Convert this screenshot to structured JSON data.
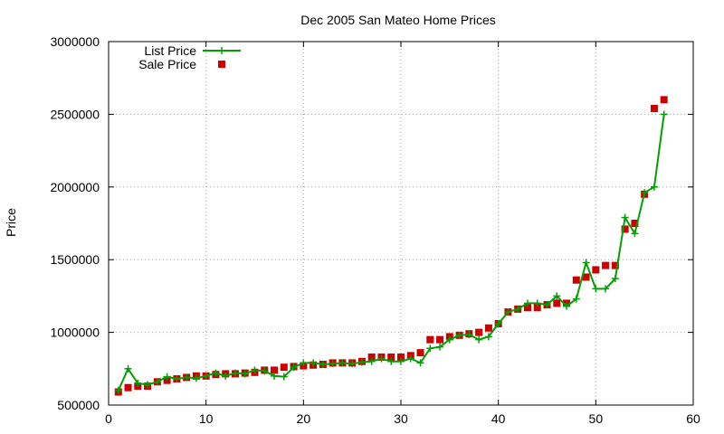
{
  "chart_data": {
    "type": "line",
    "title": "Dec 2005 San Mateo Home Prices",
    "xlabel": "",
    "ylabel": "Price",
    "xlim": [
      0,
      60
    ],
    "ylim": [
      500000,
      3000000
    ],
    "xticks": [
      0,
      10,
      20,
      30,
      40,
      50,
      60
    ],
    "yticks": [
      500000,
      1000000,
      1500000,
      2000000,
      2500000,
      3000000
    ],
    "grid": true,
    "legend_position": "top-left",
    "x": [
      1,
      2,
      3,
      4,
      5,
      6,
      7,
      8,
      9,
      10,
      11,
      12,
      13,
      14,
      15,
      16,
      17,
      18,
      19,
      20,
      21,
      22,
      23,
      24,
      25,
      26,
      27,
      28,
      29,
      30,
      31,
      32,
      33,
      34,
      35,
      36,
      37,
      38,
      39,
      40,
      41,
      42,
      43,
      44,
      45,
      46,
      47,
      48,
      49,
      50,
      51,
      52,
      53,
      54,
      55,
      56,
      57
    ],
    "series": [
      {
        "name": "List Price",
        "color": "#00a000",
        "style": "line-plus",
        "values": [
          600000,
          750000,
          650000,
          640000,
          660000,
          695000,
          680000,
          690000,
          685000,
          700000,
          720000,
          700000,
          720000,
          715000,
          740000,
          735000,
          700000,
          695000,
          760000,
          790000,
          790000,
          780000,
          785000,
          790000,
          785000,
          795000,
          800000,
          820000,
          800000,
          800000,
          820000,
          790000,
          890000,
          900000,
          950000,
          980000,
          985000,
          950000,
          970000,
          1060000,
          1140000,
          1160000,
          1200000,
          1200000,
          1190000,
          1250000,
          1180000,
          1230000,
          1480000,
          1300000,
          1300000,
          1370000,
          1790000,
          1680000,
          1960000,
          2000000,
          2500000
        ]
      },
      {
        "name": "Sale Price",
        "color": "#cc0000",
        "style": "square",
        "values": [
          590000,
          620000,
          630000,
          630000,
          660000,
          670000,
          680000,
          690000,
          700000,
          700000,
          710000,
          715000,
          715000,
          720000,
          725000,
          740000,
          740000,
          760000,
          765000,
          770000,
          775000,
          780000,
          790000,
          790000,
          790000,
          800000,
          830000,
          830000,
          830000,
          830000,
          840000,
          860000,
          950000,
          950000,
          970000,
          980000,
          990000,
          1000000,
          1030000,
          1060000,
          1140000,
          1160000,
          1170000,
          1170000,
          1190000,
          1200000,
          1200000,
          1360000,
          1380000,
          1430000,
          1460000,
          1460000,
          1710000,
          1750000,
          1950000,
          2540000,
          2600000
        ]
      }
    ]
  }
}
